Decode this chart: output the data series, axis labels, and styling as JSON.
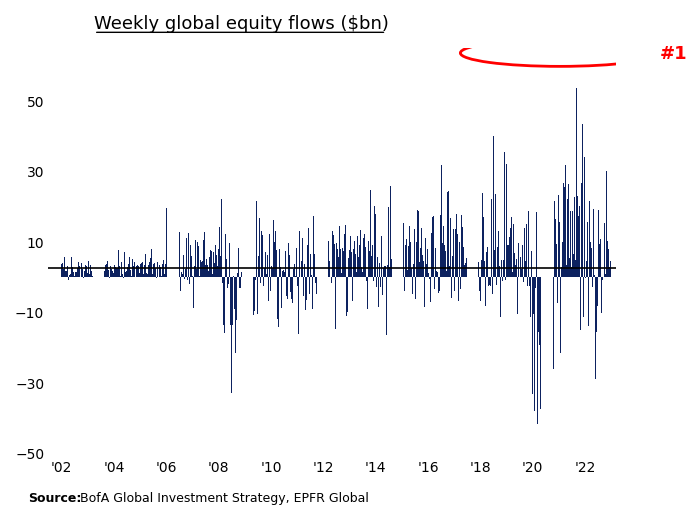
{
  "title": "Weekly global equity flows ($bn)",
  "source_bold": "Source:",
  "source_text": "BofA Global Investment Strategy, EPFR Global",
  "bar_color": "#0d2260",
  "zero_line_color": "#000000",
  "annotation_text": "#1",
  "annotation_color": "#ff0000",
  "ylim": [
    -50,
    65
  ],
  "yticks": [
    -50,
    -30,
    -10,
    10,
    30,
    50
  ],
  "xtick_positions": [
    2002,
    2004,
    2006,
    2008,
    2010,
    2012,
    2014,
    2016,
    2018,
    2020,
    2022
  ],
  "xtick_labels": [
    "'02",
    "'04",
    "'06",
    "'08",
    "'10",
    "'12",
    "'14",
    "'16",
    "'18",
    "'20",
    "'22"
  ],
  "title_fontsize": 13,
  "source_fontsize": 9,
  "background_color": "#ffffff",
  "zero_line_y": 2.5,
  "xlim": [
    2001.5,
    2023.2
  ]
}
